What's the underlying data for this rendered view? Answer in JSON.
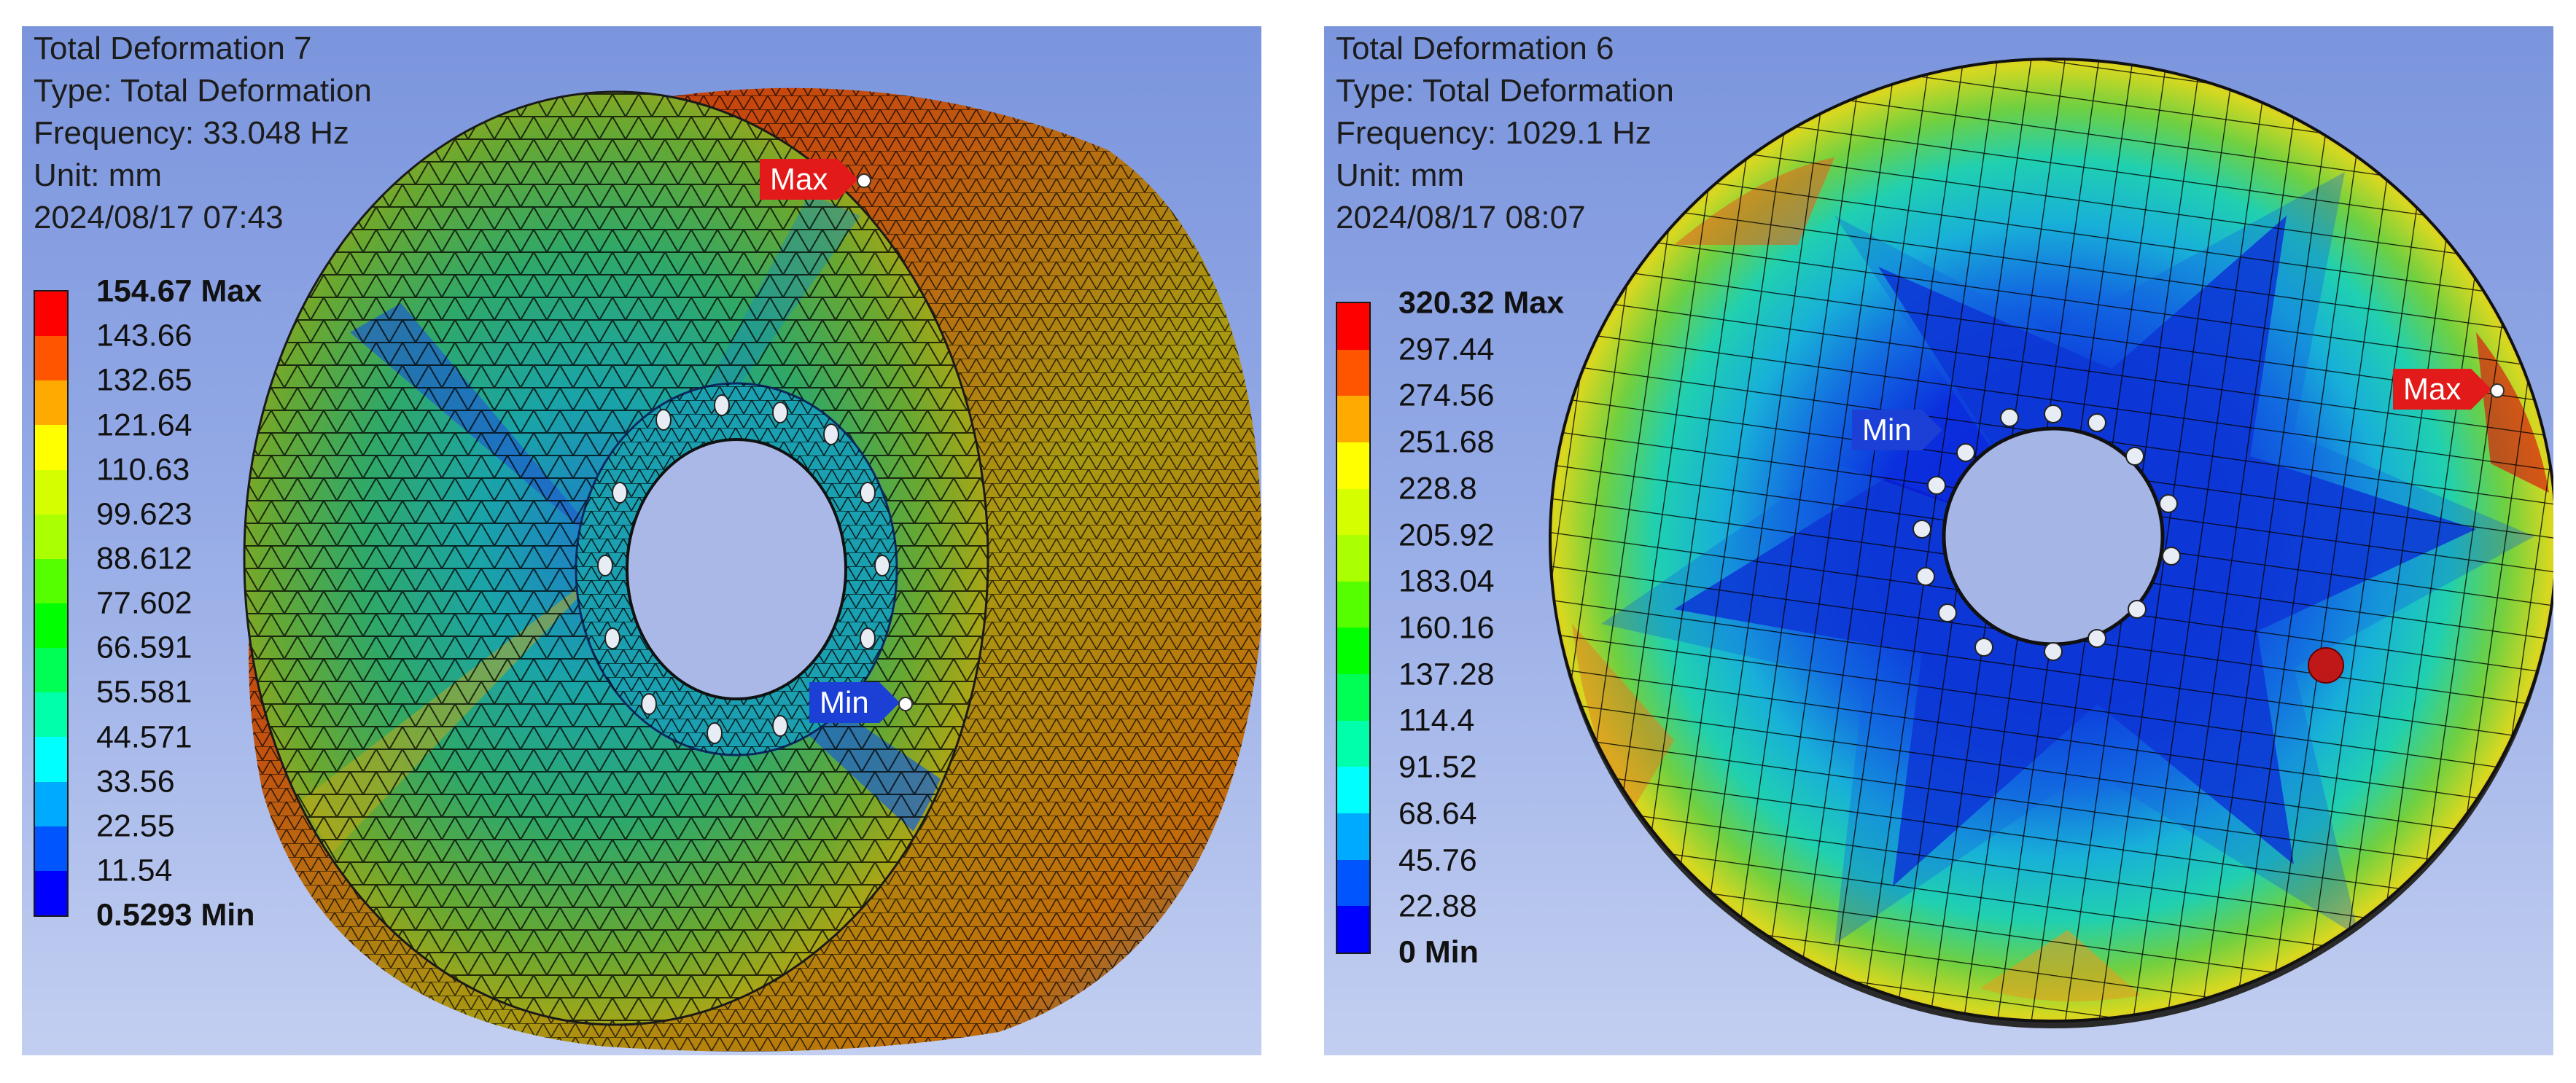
{
  "panels": [
    {
      "title": "Total Deformation 7",
      "type_line": "Type: Total Deformation",
      "frequency_line": "Frequency: 33.048 Hz",
      "unit_line": "Unit: mm",
      "date_line": "2024/08/17 07:43",
      "legend": {
        "max_label": "154.67 Max",
        "levels": [
          "143.66",
          "132.65",
          "121.64",
          "110.63",
          "99.623",
          "88.612",
          "77.602",
          "66.591",
          "55.581",
          "44.571",
          "33.56",
          "22.55",
          "11.54"
        ],
        "min_label": "0.5293 Min"
      },
      "probe_max": "Max",
      "probe_min": "Min"
    },
    {
      "title": "Total Deformation 6",
      "type_line": "Type: Total Deformation",
      "frequency_line": "Frequency: 1029.1 Hz",
      "unit_line": "Unit: mm",
      "date_line": "2024/08/17 08:07",
      "legend": {
        "max_label": "320.32 Max",
        "levels": [
          "297.44",
          "274.56",
          "251.68",
          "228.8",
          "205.92",
          "183.04",
          "160.16",
          "137.28",
          "114.4",
          "91.52",
          "68.64",
          "45.76",
          "22.88"
        ],
        "min_label": "0 Min"
      },
      "probe_max": "Max",
      "probe_min": "Min"
    }
  ],
  "colors": {
    "contour_bands": [
      "#ff0000",
      "#ff5500",
      "#ffaa00",
      "#ffff00",
      "#d5ff00",
      "#aaff00",
      "#55ff00",
      "#00ff00",
      "#00ff55",
      "#00ffaa",
      "#00ffff",
      "#00aaff",
      "#0055ff",
      "#0000ff"
    ],
    "probe_max": "#e21a1a",
    "probe_min": "#1c3fd6",
    "background_top": "#7b95dd",
    "background_bottom": "#c3cff1"
  }
}
